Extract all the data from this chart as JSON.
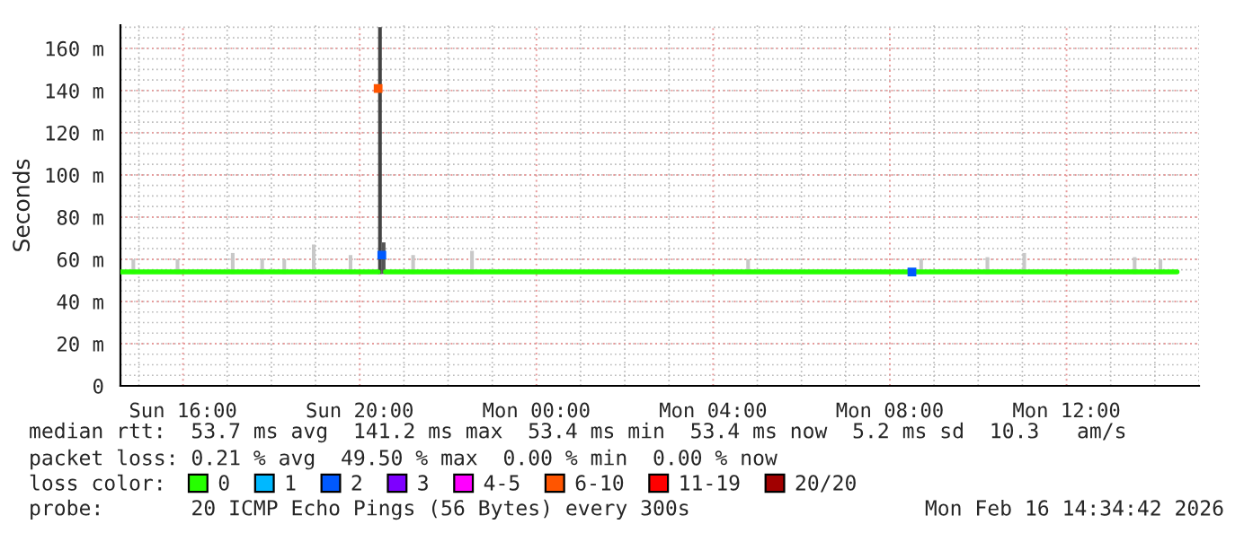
{
  "chart_data": {
    "type": "step",
    "ylabel": "Seconds",
    "ylim": [
      0,
      171
    ],
    "yticks": [
      0,
      {
        "value": 20,
        "label": "20 m"
      },
      {
        "value": 40,
        "label": "40 m"
      },
      {
        "value": 60,
        "label": "60 m"
      },
      {
        "value": 80,
        "label": "80 m"
      },
      {
        "value": 100,
        "label": "100 m"
      },
      {
        "value": 120,
        "label": "120 m"
      },
      {
        "value": 140,
        "label": "140 m"
      },
      {
        "value": 160,
        "label": "160 m"
      }
    ],
    "xlim": [
      "2026-02-15T14:35",
      "2026-02-16T15:00"
    ],
    "xticks": [
      {
        "value": "2026-02-15T16:00",
        "label": "Sun 16:00"
      },
      {
        "value": "2026-02-15T20:00",
        "label": "Sun 20:00"
      },
      {
        "value": "2026-02-16T00:00",
        "label": "Mon 00:00"
      },
      {
        "value": "2026-02-16T04:00",
        "label": "Mon 04:00"
      },
      {
        "value": "2026-02-16T08:00",
        "label": "Mon 08:00"
      },
      {
        "value": "2026-02-16T12:00",
        "label": "Mon 12:00"
      }
    ],
    "grid": true,
    "legend": "bottom",
    "legend_title": "loss color:",
    "series": [
      {
        "type": "bar",
        "x": [
          "2026-02-15T14:50",
          "2026-02-15T15:50",
          "2026-02-15T17:05",
          "2026-02-15T17:45",
          "2026-02-15T18:15",
          "2026-02-15T18:55",
          "2026-02-15T19:45",
          "2026-02-15T20:25",
          "2026-02-15T20:30",
          "2026-02-15T21:10",
          "2026-02-15T22:30",
          "2026-02-16T04:45",
          "2026-02-16T08:40",
          "2026-02-16T10:10",
          "2026-02-16T11:00",
          "2026-02-16T13:30",
          "2026-02-16T14:05"
        ],
        "base": [
          53,
          53,
          53,
          53,
          53,
          53,
          53,
          53,
          53,
          53,
          53,
          53,
          53,
          53,
          53,
          53,
          53
        ],
        "values": [
          7,
          7,
          10,
          7,
          7,
          14,
          9,
          117,
          15,
          9,
          11,
          7,
          7,
          8,
          10,
          8,
          7
        ],
        "colors": [
          "#c8c8c8",
          "#c8c8c8",
          "#c8c8c8",
          "#c8c8c8",
          "#c8c8c8",
          "#c8c8c8",
          "#c8c8c8",
          "#444444",
          "#555555",
          "#c8c8c8",
          "#c8c8c8",
          "#c8c8c8",
          "#c8c8c8",
          "#c8c8c8",
          "#c8c8c8",
          "#c8c8c8",
          "#c8c8c8"
        ]
      },
      {
        "name": "0",
        "color": "#26ff00",
        "x": [
          "2026-02-15T14:35",
          "2026-02-15T20:25",
          "2026-02-15T20:35",
          "2026-02-16T08:25",
          "2026-02-16T08:35",
          "2026-02-16T14:30"
        ],
        "values": [
          54,
          null,
          54,
          null,
          54,
          54
        ]
      },
      {
        "name": "1",
        "color": "#00b8ff"
      },
      {
        "name": "2",
        "type": "scatter",
        "marker": "square",
        "color": "#0059ff",
        "x": [
          "2026-02-15T20:30",
          "2026-02-16T08:30"
        ],
        "values": [
          62,
          54
        ]
      },
      {
        "name": "3",
        "color": "#7e00ff"
      },
      {
        "name": "4-5",
        "color": "#ff00ff"
      },
      {
        "name": "6-10",
        "type": "scatter",
        "marker": "square",
        "color": "#ff5500",
        "x": [
          "2026-02-15T20:25"
        ],
        "values": [
          141
        ]
      },
      {
        "name": "11-19",
        "color": "#ff0000"
      },
      {
        "name": "20/20",
        "color": "#a10000"
      }
    ],
    "annotations": [
      "median rtt:  53.7 ms avg  141.2 ms max  53.4 ms min  53.4 ms now  5.2 ms sd  10.3   am/s",
      "packet loss: 0.21 % avg  49.50 % max  0.00 % min  0.00 % now",
      "probe:       20 ICMP Echo Pings (56 Bytes) every 300s",
      "Mon Feb 16 14:34:42 2026"
    ]
  }
}
